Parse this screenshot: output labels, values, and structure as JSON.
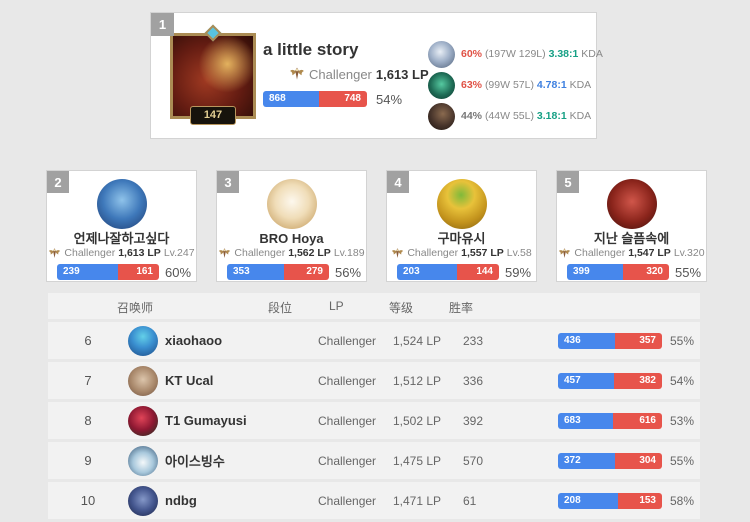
{
  "colors": {
    "win_bar_blue": "#4787ec",
    "loss_bar_red": "#e7544b",
    "hot_winrate_red": "#e05246",
    "neutral_winrate_gray": "#777777",
    "kda_teal": "#16a085",
    "kda_blue": "#3e80e0"
  },
  "top_player": {
    "rank": "1",
    "name": "a little story",
    "tier": "Challenger",
    "lp": "1,613 LP",
    "level": "147",
    "wins": "868",
    "losses": "748",
    "winrate": "54%",
    "champions": [
      {
        "winrate": "60%",
        "winrate_color": "#e05246",
        "record": "(197W 129L)",
        "ratio": "3.38:1",
        "ratio_color": "#16a085",
        "label": "KDA"
      },
      {
        "winrate": "63%",
        "winrate_color": "#e05246",
        "record": "(99W 57L)",
        "ratio": "4.78:1",
        "ratio_color": "#3e80e0",
        "label": "KDA"
      },
      {
        "winrate": "44%",
        "winrate_color": "#777777",
        "record": "(44W 55L)",
        "ratio": "3.18:1",
        "ratio_color": "#16a085",
        "label": "KDA"
      }
    ]
  },
  "cards": [
    {
      "rank": "2",
      "name": "언제나잘하고싶다",
      "tier": "Challenger",
      "lp": "1,613 LP",
      "level": "Lv.247",
      "wins": "239",
      "losses": "161",
      "winrate": "60%"
    },
    {
      "rank": "3",
      "name": "BRO Hoya",
      "tier": "Challenger",
      "lp": "1,562 LP",
      "level": "Lv.189",
      "wins": "353",
      "losses": "279",
      "winrate": "56%"
    },
    {
      "rank": "4",
      "name": "구마유시",
      "tier": "Challenger",
      "lp": "1,557 LP",
      "level": "Lv.58",
      "wins": "203",
      "losses": "144",
      "winrate": "59%"
    },
    {
      "rank": "5",
      "name": "지난 슬픔속에",
      "tier": "Challenger",
      "lp": "1,547 LP",
      "level": "Lv.320",
      "wins": "399",
      "losses": "320",
      "winrate": "55%"
    }
  ],
  "table": {
    "headers": {
      "summoner": "召唤师",
      "tier": "段位",
      "lp": "LP",
      "level": "等级",
      "winrate": "胜率"
    },
    "rows": [
      {
        "rank": "6",
        "name": "xiaohaoo",
        "tier": "Challenger",
        "lp": "1,524 LP",
        "level": "233",
        "wins": "436",
        "losses": "357",
        "winrate": "55%"
      },
      {
        "rank": "7",
        "name": "KT Ucal",
        "tier": "Challenger",
        "lp": "1,512 LP",
        "level": "336",
        "wins": "457",
        "losses": "382",
        "winrate": "54%"
      },
      {
        "rank": "8",
        "name": "T1 Gumayusi",
        "tier": "Challenger",
        "lp": "1,502 LP",
        "level": "392",
        "wins": "683",
        "losses": "616",
        "winrate": "53%"
      },
      {
        "rank": "9",
        "name": "아이스빙수",
        "tier": "Challenger",
        "lp": "1,475 LP",
        "level": "570",
        "wins": "372",
        "losses": "304",
        "winrate": "55%"
      },
      {
        "rank": "10",
        "name": "ndbg",
        "tier": "Challenger",
        "lp": "1,471 LP",
        "level": "61",
        "wins": "208",
        "losses": "153",
        "winrate": "58%"
      }
    ]
  }
}
